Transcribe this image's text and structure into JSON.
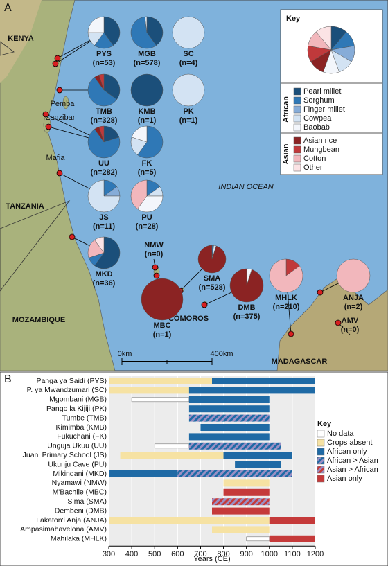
{
  "chart_data": [
    {
      "type": "pie-map",
      "title": "A",
      "labels": [
        "KENYA",
        "Pemba",
        "Zanzibar",
        "Mafia",
        "TANZANIA",
        "INDIAN OCEAN",
        "MOZAMBIQUE",
        "COMOROS",
        "MADAGASCAR"
      ],
      "scale": [
        "0km",
        "400km"
      ],
      "key": {
        "title": "Key",
        "values": [
          1,
          1,
          1,
          1,
          1,
          1,
          1,
          1,
          1
        ],
        "groups": [
          {
            "name": "African",
            "categories": [
              "Pearl millet",
              "Sorghum",
              "Finger millet",
              "Cowpea",
              "Baobab"
            ]
          },
          {
            "name": "Asian",
            "categories": [
              "Asian rice",
              "Mungbean",
              "Cotton",
              "Other"
            ]
          }
        ],
        "colors": [
          "#1b4f7a",
          "#2f78b6",
          "#86acd8",
          "#d3e3f3",
          "#f3f6fb",
          "#8b2323",
          "#c0393b",
          "#f2b7bc",
          "#fbe3e5"
        ]
      },
      "pies": [
        {
          "name": "PYS",
          "n": "(n=53)",
          "values": [
            40,
            20,
            0,
            15,
            25,
            0,
            0,
            0,
            0
          ]
        },
        {
          "name": "MGB",
          "n": "(n=578)",
          "values": [
            40,
            58,
            0,
            2,
            0,
            0,
            0,
            0,
            0
          ]
        },
        {
          "name": "SC",
          "n": "(n=4)",
          "values": [
            0,
            0,
            0,
            100,
            0,
            0,
            0,
            0,
            0
          ]
        },
        {
          "name": "TMB",
          "n": "(n=328)",
          "values": [
            35,
            55,
            0,
            0,
            0,
            5,
            5,
            0,
            0
          ]
        },
        {
          "name": "KMB",
          "n": "(n=1)",
          "values": [
            100,
            0,
            0,
            0,
            0,
            0,
            0,
            0,
            0
          ]
        },
        {
          "name": "PK",
          "n": "(n=1)",
          "values": [
            0,
            0,
            0,
            100,
            0,
            0,
            0,
            0,
            0
          ]
        },
        {
          "name": "UU",
          "n": "(n=282)",
          "values": [
            20,
            70,
            0,
            0,
            0,
            5,
            5,
            0,
            0
          ]
        },
        {
          "name": "FK",
          "n": "(n=5)",
          "values": [
            0,
            60,
            0,
            20,
            20,
            0,
            0,
            0,
            0
          ]
        },
        {
          "name": "JS",
          "n": "(n=11)",
          "values": [
            0,
            15,
            10,
            75,
            0,
            0,
            0,
            0,
            0
          ]
        },
        {
          "name": "PU",
          "n": "(n=28)",
          "values": [
            0,
            15,
            0,
            10,
            35,
            0,
            0,
            40,
            0
          ]
        },
        {
          "name": "MKD",
          "n": "(n=36)",
          "values": [
            60,
            10,
            0,
            0,
            0,
            0,
            0,
            20,
            10
          ]
        },
        {
          "name": "NMW",
          "n": "(n=0)",
          "values": []
        },
        {
          "name": "SMA",
          "n": "(n=528)",
          "values": [
            0,
            2,
            0,
            3,
            0,
            95,
            0,
            0,
            0
          ]
        },
        {
          "name": "MBC",
          "n": "(n=1)",
          "values": [
            0,
            0,
            0,
            0,
            0,
            100,
            0,
            0,
            0
          ]
        },
        {
          "name": "DMB",
          "n": "(n=375)",
          "values": [
            0,
            0,
            0,
            0,
            5,
            95,
            0,
            0,
            0
          ]
        },
        {
          "name": "MHLK",
          "n": "(n=210)",
          "values": [
            0,
            0,
            0,
            0,
            0,
            0,
            15,
            85,
            0
          ]
        },
        {
          "name": "ANJA",
          "n": "(n=2)",
          "values": [
            0,
            0,
            0,
            0,
            0,
            0,
            0,
            100,
            0
          ]
        },
        {
          "name": "AMV",
          "n": "(n=0)",
          "values": []
        }
      ]
    },
    {
      "type": "timeline",
      "title": "B",
      "x_label": "Years (CE)",
      "xlim": [
        300,
        1200
      ],
      "xticks": [
        300,
        400,
        500,
        600,
        700,
        800,
        900,
        1000,
        1100,
        1200
      ],
      "grid": true,
      "legend": {
        "title": "Key",
        "items": [
          {
            "name": "No data",
            "color": "#ffffff"
          },
          {
            "name": "Crops absent",
            "color": "#f6e2a3"
          },
          {
            "name": "African only",
            "color": "#1f6aa5"
          },
          {
            "name": "African > Asian",
            "color": "#5a6fb0"
          },
          {
            "name": "Asian > African",
            "color": "#b0445a"
          },
          {
            "name": "Asian only",
            "color": "#c53a3a"
          }
        ]
      },
      "rows": [
        {
          "name": "Panga ya Saidi (PYS)",
          "segments": [
            {
              "status": "Crops absent",
              "start": 300,
              "end": 750
            },
            {
              "status": "African only",
              "start": 750,
              "end": 1200
            }
          ]
        },
        {
          "name": "P. ya Mwandzumari (SC)",
          "segments": [
            {
              "status": "Crops absent",
              "start": 300,
              "end": 650
            },
            {
              "status": "African only",
              "start": 650,
              "end": 1200
            }
          ]
        },
        {
          "name": "Mgombani (MGB)",
          "segments": [
            {
              "status": "No data",
              "start": 400,
              "end": 650
            },
            {
              "status": "African only",
              "start": 650,
              "end": 1000
            }
          ]
        },
        {
          "name": "Pango la Kijiji (PK)",
          "segments": [
            {
              "status": "African only",
              "start": 650,
              "end": 1000
            }
          ]
        },
        {
          "name": "Tumbe (TMB)",
          "segments": [
            {
              "status": "African > Asian",
              "start": 650,
              "end": 1000
            }
          ]
        },
        {
          "name": "Kimimba (KMB)",
          "segments": [
            {
              "status": "African only",
              "start": 700,
              "end": 1000
            }
          ]
        },
        {
          "name": "Fukuchani (FK)",
          "segments": [
            {
              "status": "African only",
              "start": 650,
              "end": 1000
            }
          ]
        },
        {
          "name": "Unguja Ukuu (UU)",
          "segments": [
            {
              "status": "No data",
              "start": 500,
              "end": 650
            },
            {
              "status": "African > Asian",
              "start": 650,
              "end": 1050
            }
          ]
        },
        {
          "name": "Juani Primary School (JS)",
          "segments": [
            {
              "status": "Crops absent",
              "start": 350,
              "end": 800
            },
            {
              "status": "African only",
              "start": 800,
              "end": 1100
            }
          ]
        },
        {
          "name": "Ukunju Cave (PU)",
          "segments": [
            {
              "status": "African only",
              "start": 850,
              "end": 1050
            }
          ]
        },
        {
          "name": "Mikindani (MKD)",
          "segments": [
            {
              "status": "African only",
              "start": 300,
              "end": 600
            },
            {
              "status": "African > Asian",
              "start": 600,
              "end": 1100
            }
          ]
        },
        {
          "name": "Nyamawi (NMW)",
          "segments": [
            {
              "status": "Crops absent",
              "start": 800,
              "end": 1000
            }
          ]
        },
        {
          "name": "M'Bachile (MBC)",
          "segments": [
            {
              "status": "Asian only",
              "start": 800,
              "end": 1000
            }
          ]
        },
        {
          "name": "Sima (SMA)",
          "segments": [
            {
              "status": "Asian > African",
              "start": 750,
              "end": 1000
            }
          ]
        },
        {
          "name": "Dembeni (DMB)",
          "segments": [
            {
              "status": "Asian only",
              "start": 750,
              "end": 1000
            }
          ]
        },
        {
          "name": "Lakaton'i Anja (ANJA)",
          "segments": [
            {
              "status": "Crops absent",
              "start": 300,
              "end": 1000
            },
            {
              "status": "Asian only",
              "start": 1000,
              "end": 1200
            }
          ]
        },
        {
          "name": "Ampasimahavelona (AMV)",
          "segments": [
            {
              "status": "Crops absent",
              "start": 750,
              "end": 1000
            }
          ]
        },
        {
          "name": "Mahilaka (MHLK)",
          "segments": [
            {
              "status": "No data",
              "start": 900,
              "end": 1000
            },
            {
              "status": "Asian only",
              "start": 1000,
              "end": 1200
            }
          ]
        }
      ]
    }
  ]
}
